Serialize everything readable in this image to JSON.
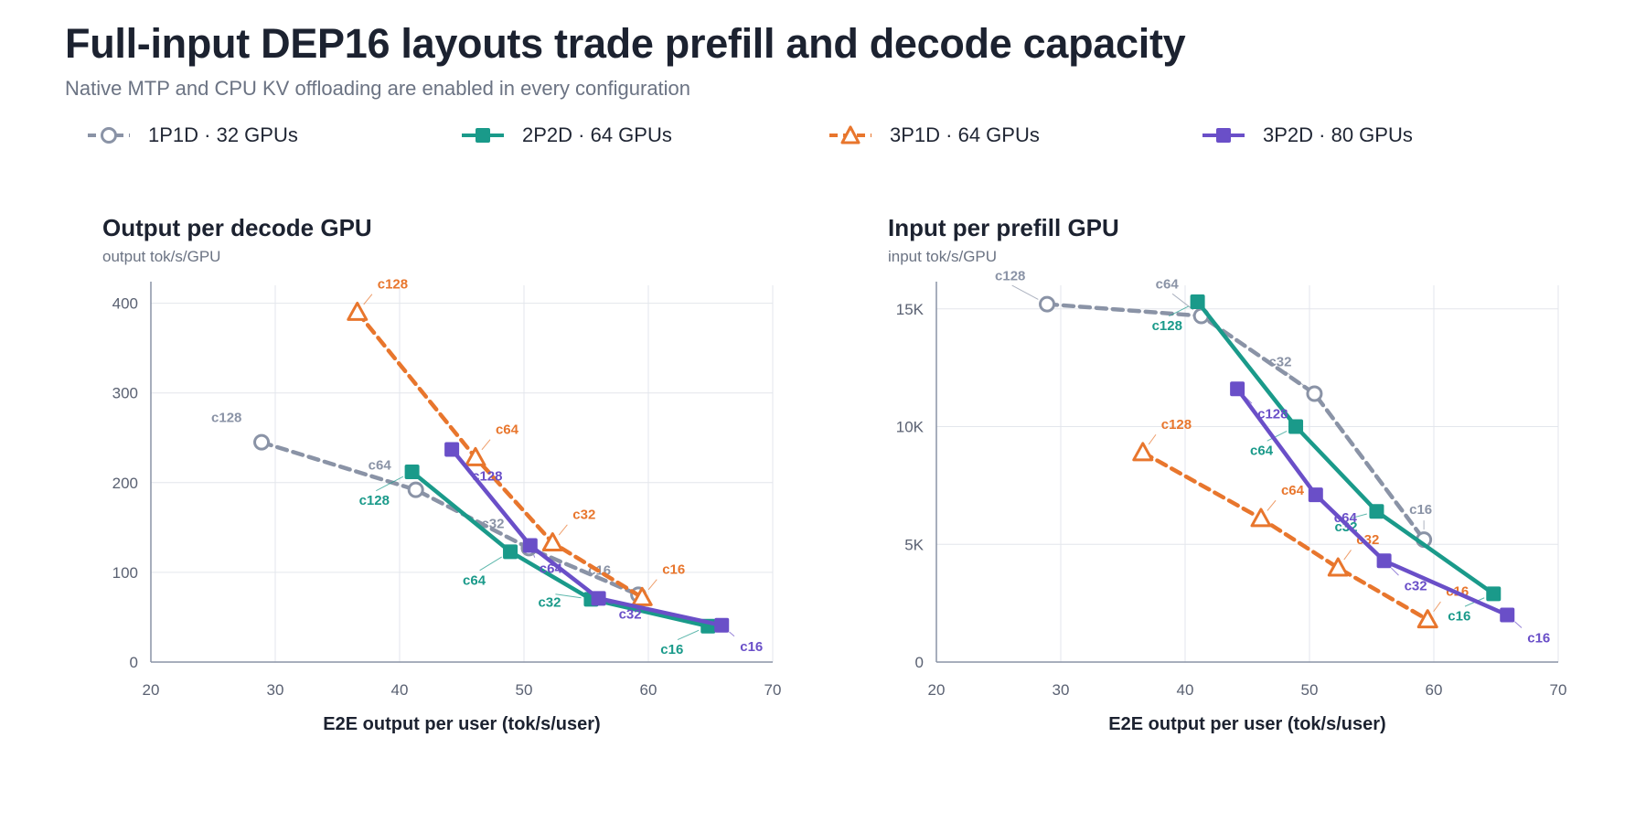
{
  "header": {
    "title": "Full-input DEP16 layouts trade prefill and decode capacity",
    "subtitle": "Native MTP and CPU KV offloading are enabled in every configuration"
  },
  "legend": [
    {
      "label": "1P1D · 32 GPUs",
      "color": "#8a93a6",
      "dashed": true,
      "marker": "circle"
    },
    {
      "label": "2P2D · 64 GPUs",
      "color": "#1a9a8a",
      "dashed": false,
      "marker": "square"
    },
    {
      "label": "3P1D · 64 GPUs",
      "color": "#e8762d",
      "dashed": true,
      "marker": "triangle"
    },
    {
      "label": "3P2D · 80 GPUs",
      "color": "#6a4fc8",
      "dashed": false,
      "marker": "square"
    }
  ],
  "chart_data": [
    {
      "type": "line",
      "title": "Output per decode GPU",
      "subtitle": "output tok/s/GPU",
      "xlabel": "E2E output per user (tok/s/user)",
      "ylabel": "",
      "xlim": [
        20,
        70
      ],
      "ylim": [
        0,
        420
      ],
      "xticks": [
        20,
        30,
        40,
        50,
        60,
        70
      ],
      "yticks": [
        0,
        100,
        200,
        300,
        400
      ],
      "ytick_labels": [
        "0",
        "100",
        "200",
        "300",
        "400"
      ],
      "grid": true,
      "series": [
        {
          "name": "1P1D · 32 GPUs",
          "color": "#8a93a6",
          "dashed": true,
          "marker": "circle",
          "points": [
            {
              "label": "c128",
              "x": 28.9,
              "y": 245
            },
            {
              "label": "c64",
              "x": 41.3,
              "y": 192
            },
            {
              "label": "c32",
              "x": 50.4,
              "y": 127
            },
            {
              "label": "c16",
              "x": 59.2,
              "y": 75
            }
          ]
        },
        {
          "name": "2P2D · 64 GPUs",
          "color": "#1a9a8a",
          "dashed": false,
          "marker": "square",
          "points": [
            {
              "label": "c128",
              "x": 41.0,
              "y": 212
            },
            {
              "label": "c64",
              "x": 48.9,
              "y": 123
            },
            {
              "label": "c32",
              "x": 55.4,
              "y": 70
            },
            {
              "label": "c16",
              "x": 64.8,
              "y": 40
            }
          ]
        },
        {
          "name": "3P1D · 64 GPUs",
          "color": "#e8762d",
          "dashed": true,
          "marker": "triangle",
          "points": [
            {
              "label": "c128",
              "x": 36.6,
              "y": 390
            },
            {
              "label": "c64",
              "x": 46.1,
              "y": 228
            },
            {
              "label": "c32",
              "x": 52.3,
              "y": 133
            },
            {
              "label": "c16",
              "x": 59.5,
              "y": 72
            }
          ]
        },
        {
          "name": "3P2D · 80 GPUs",
          "color": "#6a4fc8",
          "dashed": false,
          "marker": "square",
          "points": [
            {
              "label": "c128",
              "x": 44.2,
              "y": 237
            },
            {
              "label": "c64",
              "x": 50.5,
              "y": 130
            },
            {
              "label": "c32",
              "x": 56.0,
              "y": 71
            },
            {
              "label": "c16",
              "x": 65.9,
              "y": 41
            }
          ]
        }
      ]
    },
    {
      "type": "line",
      "title": "Input per prefill GPU",
      "subtitle": "input tok/s/GPU",
      "xlabel": "E2E output per user (tok/s/user)",
      "ylabel": "",
      "xlim": [
        20,
        70
      ],
      "ylim": [
        0,
        16000
      ],
      "xticks": [
        20,
        30,
        40,
        50,
        60,
        70
      ],
      "yticks": [
        0,
        5000,
        10000,
        15000
      ],
      "ytick_labels": [
        "0",
        "5K",
        "10K",
        "15K"
      ],
      "grid": true,
      "series": [
        {
          "name": "1P1D · 32 GPUs",
          "color": "#8a93a6",
          "dashed": true,
          "marker": "circle",
          "points": [
            {
              "label": "c128",
              "x": 28.9,
              "y": 15200
            },
            {
              "label": "c64",
              "x": 41.3,
              "y": 14700
            },
            {
              "label": "c32",
              "x": 50.4,
              "y": 11400
            },
            {
              "label": "c16",
              "x": 59.2,
              "y": 5200
            }
          ]
        },
        {
          "name": "2P2D · 64 GPUs",
          "color": "#1a9a8a",
          "dashed": false,
          "marker": "square",
          "points": [
            {
              "label": "c128",
              "x": 41.0,
              "y": 15300
            },
            {
              "label": "c64",
              "x": 48.9,
              "y": 10000
            },
            {
              "label": "c32",
              "x": 55.4,
              "y": 6400
            },
            {
              "label": "c16",
              "x": 64.8,
              "y": 2900
            }
          ]
        },
        {
          "name": "3P1D · 64 GPUs",
          "color": "#e8762d",
          "dashed": true,
          "marker": "triangle",
          "points": [
            {
              "label": "c128",
              "x": 36.6,
              "y": 8900
            },
            {
              "label": "c64",
              "x": 46.1,
              "y": 6100
            },
            {
              "label": "c32",
              "x": 52.3,
              "y": 4000
            },
            {
              "label": "c16",
              "x": 59.5,
              "y": 1800
            }
          ]
        },
        {
          "name": "3P2D · 80 GPUs",
          "color": "#6a4fc8",
          "dashed": false,
          "marker": "square",
          "points": [
            {
              "label": "c128",
              "x": 44.2,
              "y": 11600
            },
            {
              "label": "c64",
              "x": 50.5,
              "y": 7100
            },
            {
              "label": "c32",
              "x": 56.0,
              "y": 4300
            },
            {
              "label": "c16",
              "x": 65.9,
              "y": 2000
            }
          ]
        }
      ]
    }
  ]
}
